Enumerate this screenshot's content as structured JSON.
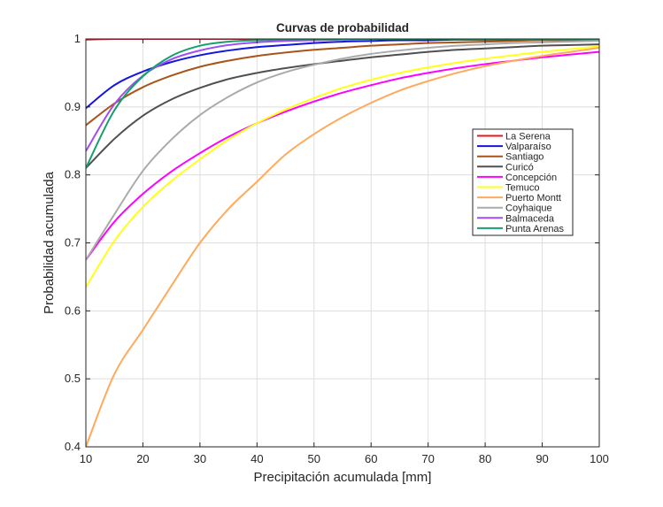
{
  "chart_data": {
    "type": "line",
    "title": "Curvas de probabilidad",
    "xlabel": "Precipitación acumulada [mm]",
    "ylabel": "Probabilidad acumulada",
    "xlim": [
      10,
      100
    ],
    "ylim": [
      0.4,
      1
    ],
    "xticks": [
      10,
      20,
      30,
      40,
      50,
      60,
      70,
      80,
      90,
      100
    ],
    "yticks": [
      0.4,
      0.5,
      0.6,
      0.7,
      0.8,
      0.9,
      1
    ],
    "xtick_labels": [
      "10",
      "20",
      "30",
      "40",
      "50",
      "60",
      "70",
      "80",
      "90",
      "100"
    ],
    "ytick_labels": [
      "0.4",
      "0.5",
      "0.6",
      "0.7",
      "0.8",
      "0.9",
      "1"
    ],
    "grid": true,
    "legend_position": "right-middle",
    "x": [
      10,
      15,
      20,
      25,
      30,
      35,
      40,
      45,
      50,
      55,
      60,
      65,
      70,
      75,
      80,
      85,
      90,
      95,
      100
    ],
    "series": [
      {
        "name": "La Serena",
        "color": "#e8141e",
        "values": [
          0.999,
          1.0,
          1.0,
          1.0,
          1.0,
          1.0,
          1.0,
          1.0,
          1.0,
          1.0,
          1.0,
          1.0,
          1.0,
          1.0,
          1.0,
          1.0,
          1.0,
          1.0,
          1.0
        ]
      },
      {
        "name": "Valparaíso",
        "color": "#1515e0",
        "values": [
          0.898,
          0.932,
          0.952,
          0.966,
          0.976,
          0.983,
          0.988,
          0.991,
          0.994,
          0.996,
          0.997,
          0.998,
          0.998,
          0.999,
          0.999,
          0.999,
          1.0,
          1.0,
          1.0
        ]
      },
      {
        "name": "Santiago",
        "color": "#a8541a",
        "values": [
          0.873,
          0.905,
          0.929,
          0.946,
          0.959,
          0.968,
          0.975,
          0.98,
          0.984,
          0.987,
          0.99,
          0.992,
          0.994,
          0.995,
          0.996,
          0.997,
          0.998,
          0.998,
          0.999
        ]
      },
      {
        "name": "Curicó",
        "color": "#505050",
        "values": [
          0.81,
          0.853,
          0.887,
          0.911,
          0.928,
          0.941,
          0.95,
          0.957,
          0.963,
          0.968,
          0.973,
          0.977,
          0.981,
          0.984,
          0.986,
          0.988,
          0.99,
          0.991,
          0.992
        ]
      },
      {
        "name": "Concepción",
        "color": "#ff00ff",
        "values": [
          0.675,
          0.731,
          0.772,
          0.805,
          0.832,
          0.856,
          0.876,
          0.893,
          0.908,
          0.921,
          0.932,
          0.942,
          0.95,
          0.957,
          0.963,
          0.968,
          0.973,
          0.977,
          0.981
        ]
      },
      {
        "name": "Temuco",
        "color": "#ffff1a",
        "values": [
          0.635,
          0.703,
          0.753,
          0.791,
          0.823,
          0.852,
          0.876,
          0.896,
          0.913,
          0.928,
          0.94,
          0.95,
          0.958,
          0.965,
          0.971,
          0.976,
          0.981,
          0.985,
          0.989
        ]
      },
      {
        "name": "Puerto Montt",
        "color": "#ffaa5c",
        "values": [
          0.4,
          0.507,
          0.572,
          0.637,
          0.7,
          0.75,
          0.79,
          0.83,
          0.86,
          0.885,
          0.906,
          0.924,
          0.938,
          0.95,
          0.96,
          0.968,
          0.975,
          0.981,
          0.987
        ]
      },
      {
        "name": "Coyhaique",
        "color": "#aaaaaa",
        "values": [
          0.675,
          0.742,
          0.806,
          0.852,
          0.888,
          0.915,
          0.936,
          0.951,
          0.962,
          0.971,
          0.978,
          0.983,
          0.987,
          0.99,
          0.992,
          0.994,
          0.995,
          0.996,
          0.997
        ]
      },
      {
        "name": "Balmaceda",
        "color": "#a24cf4",
        "values": [
          0.835,
          0.904,
          0.946,
          0.97,
          0.983,
          0.991,
          0.995,
          0.997,
          0.998,
          0.999,
          1.0,
          1.0,
          1.0,
          1.0,
          1.0,
          1.0,
          1.0,
          1.0,
          1.0
        ]
      },
      {
        "name": "Punta Arenas",
        "color": "#14a06e",
        "values": [
          0.81,
          0.895,
          0.945,
          0.975,
          0.99,
          0.996,
          0.998,
          0.999,
          1.0,
          1.0,
          1.0,
          1.0,
          1.0,
          1.0,
          1.0,
          1.0,
          1.0,
          1.0,
          1.0
        ]
      }
    ]
  }
}
